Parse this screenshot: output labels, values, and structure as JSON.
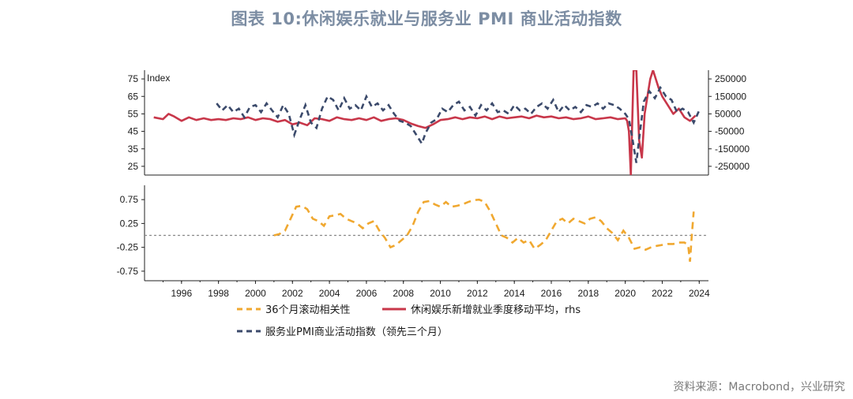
{
  "title": "图表 10:休闲娱乐就业与服务业 PMI 商业活动指数",
  "source": "资料来源：Macrobond，兴业研究",
  "colors": {
    "pmi": "#3b4a6b",
    "employment": "#c8374a",
    "correlation": "#f0a830",
    "zero_line": "#888888",
    "title": "#7c8da3"
  },
  "chart_data": [
    {
      "type": "line",
      "panel": "top",
      "axis_label_left": "Index",
      "left_ticks": [
        "75",
        "65",
        "55",
        "45",
        "35",
        "25"
      ],
      "left_ylim": [
        20,
        80
      ],
      "right_ticks": [
        "250000",
        "150000",
        "50000",
        "-50000",
        "-150000",
        "-250000"
      ],
      "right_ylim": [
        -300000,
        300000
      ],
      "xlim": [
        1994,
        2024.5
      ],
      "series": [
        {
          "name": "服务业PMI商业活动指数（领先三个月）",
          "axis": "left",
          "style": "dashed",
          "x": [
            1997.9,
            1998.2,
            1998.5,
            1998.8,
            1999.1,
            1999.4,
            1999.7,
            2000.0,
            2000.3,
            2000.6,
            2000.9,
            2001.2,
            2001.5,
            2001.8,
            2002.1,
            2002.4,
            2002.7,
            2003.0,
            2003.3,
            2003.6,
            2003.9,
            2004.2,
            2004.5,
            2004.8,
            2005.1,
            2005.4,
            2005.7,
            2006.0,
            2006.3,
            2006.6,
            2006.9,
            2007.2,
            2007.5,
            2007.8,
            2008.1,
            2008.4,
            2008.7,
            2009.0,
            2009.2,
            2009.5,
            2009.8,
            2010.1,
            2010.4,
            2010.7,
            2011.0,
            2011.3,
            2011.6,
            2011.9,
            2012.2,
            2012.5,
            2012.8,
            2013.1,
            2013.4,
            2013.7,
            2014.0,
            2014.3,
            2014.6,
            2014.9,
            2015.2,
            2015.5,
            2015.8,
            2016.1,
            2016.4,
            2016.7,
            2017.0,
            2017.3,
            2017.6,
            2017.9,
            2018.2,
            2018.5,
            2018.8,
            2019.1,
            2019.4,
            2019.7,
            2020.0,
            2020.2,
            2020.4,
            2020.6,
            2020.8,
            2021.0,
            2021.3,
            2021.6,
            2021.9,
            2022.2,
            2022.5,
            2022.8,
            2023.1,
            2023.4,
            2023.7,
            2024.0
          ],
          "values": [
            61,
            57,
            60,
            56,
            58,
            53,
            59,
            60,
            56,
            61,
            57,
            53,
            60,
            55,
            43,
            52,
            60,
            50,
            47,
            58,
            65,
            63,
            57,
            64,
            58,
            60,
            57,
            65,
            59,
            61,
            57,
            60,
            55,
            51,
            50,
            48,
            43,
            38,
            44,
            50,
            52,
            58,
            56,
            60,
            62,
            57,
            59,
            54,
            60,
            57,
            61,
            56,
            57,
            55,
            60,
            57,
            58,
            55,
            59,
            61,
            58,
            63,
            56,
            60,
            57,
            59,
            56,
            60,
            59,
            61,
            58,
            61,
            60,
            58,
            55,
            52,
            40,
            27,
            45,
            62,
            68,
            64,
            70,
            65,
            63,
            56,
            58,
            56,
            50,
            57
          ]
        },
        {
          "name": "休闲娱乐新增就业季度移动平均，rhs",
          "axis": "right",
          "style": "solid",
          "x": [
            1994.5,
            1995.0,
            1995.3,
            1995.6,
            1996.0,
            1996.4,
            1996.8,
            1997.2,
            1997.6,
            1998.0,
            1998.4,
            1998.8,
            1999.2,
            1999.6,
            2000.0,
            2000.4,
            2000.8,
            2001.2,
            2001.6,
            2002.0,
            2002.4,
            2002.8,
            2003.2,
            2003.6,
            2004.0,
            2004.4,
            2004.8,
            2005.2,
            2005.6,
            2006.0,
            2006.4,
            2006.8,
            2007.2,
            2007.6,
            2008.0,
            2008.4,
            2008.8,
            2009.2,
            2009.6,
            2010.0,
            2010.4,
            2010.8,
            2011.2,
            2011.6,
            2012.0,
            2012.4,
            2012.8,
            2013.2,
            2013.6,
            2014.0,
            2014.4,
            2014.8,
            2015.2,
            2015.6,
            2016.0,
            2016.4,
            2016.8,
            2017.2,
            2017.6,
            2018.0,
            2018.4,
            2018.8,
            2019.2,
            2019.6,
            2020.0,
            2020.1,
            2020.2,
            2020.3,
            2020.45,
            2020.6,
            2020.75,
            2020.9,
            2021.05,
            2021.2,
            2021.35,
            2021.5,
            2021.65,
            2021.8,
            2022.0,
            2022.3,
            2022.6,
            2022.9,
            2023.2,
            2023.5,
            2023.8
          ],
          "values": [
            30000,
            20000,
            50000,
            35000,
            10000,
            30000,
            15000,
            25000,
            15000,
            20000,
            15000,
            25000,
            20000,
            30000,
            15000,
            25000,
            20000,
            5000,
            15000,
            -10000,
            0,
            -15000,
            25000,
            20000,
            10000,
            30000,
            20000,
            15000,
            25000,
            15000,
            30000,
            10000,
            20000,
            25000,
            15000,
            -5000,
            -20000,
            -30000,
            -10000,
            15000,
            20000,
            30000,
            20000,
            30000,
            25000,
            35000,
            20000,
            35000,
            25000,
            30000,
            35000,
            25000,
            40000,
            30000,
            35000,
            25000,
            30000,
            20000,
            25000,
            35000,
            20000,
            25000,
            30000,
            20000,
            25000,
            10000,
            -50000,
            -300000,
            300000,
            300000,
            -100000,
            -200000,
            50000,
            150000,
            250000,
            300000,
            250000,
            200000,
            150000,
            100000,
            50000,
            80000,
            30000,
            10000,
            40000
          ]
        }
      ]
    },
    {
      "type": "line",
      "panel": "bottom",
      "left_ticks": [
        "0.75",
        "0.25",
        "-0.25",
        "-0.75"
      ],
      "ylim": [
        -0.95,
        1.05
      ],
      "x_ticks": [
        "1996",
        "1998",
        "2000",
        "2002",
        "2004",
        "2006",
        "2008",
        "2010",
        "2012",
        "2014",
        "2016",
        "2018",
        "2020",
        "2022",
        "2024"
      ],
      "reference_line": 0,
      "series": [
        {
          "name": "36个月滚动相关性",
          "style": "dashed",
          "x": [
            2001.0,
            2001.3,
            2001.6,
            2001.9,
            2002.2,
            2002.5,
            2002.8,
            2003.1,
            2003.4,
            2003.7,
            2004.0,
            2004.3,
            2004.6,
            2004.9,
            2005.2,
            2005.5,
            2005.8,
            2006.1,
            2006.4,
            2006.7,
            2007.0,
            2007.3,
            2007.6,
            2007.9,
            2008.2,
            2008.5,
            2008.8,
            2009.1,
            2009.4,
            2009.7,
            2010.0,
            2010.3,
            2010.6,
            2010.9,
            2011.2,
            2011.5,
            2011.8,
            2012.1,
            2012.4,
            2012.7,
            2013.0,
            2013.3,
            2013.6,
            2013.9,
            2014.2,
            2014.5,
            2014.8,
            2015.1,
            2015.4,
            2015.7,
            2016.0,
            2016.3,
            2016.6,
            2016.9,
            2017.2,
            2017.5,
            2017.8,
            2018.1,
            2018.4,
            2018.7,
            2019.0,
            2019.3,
            2019.6,
            2019.9,
            2020.2,
            2020.5,
            2020.8,
            2021.1,
            2021.4,
            2021.7,
            2022.0,
            2022.3,
            2022.6,
            2022.9,
            2023.2,
            2023.4,
            2023.5,
            2023.6,
            2023.7
          ],
          "values": [
            0.0,
            0.03,
            0.1,
            0.35,
            0.6,
            0.62,
            0.55,
            0.35,
            0.3,
            0.2,
            0.4,
            0.42,
            0.45,
            0.35,
            0.3,
            0.25,
            0.15,
            0.25,
            0.3,
            0.1,
            -0.05,
            -0.25,
            -0.2,
            -0.1,
            0.0,
            0.2,
            0.5,
            0.7,
            0.72,
            0.65,
            0.6,
            0.7,
            0.6,
            0.62,
            0.65,
            0.7,
            0.74,
            0.75,
            0.7,
            0.5,
            0.25,
            0.0,
            -0.05,
            -0.15,
            -0.05,
            -0.15,
            -0.1,
            -0.28,
            -0.2,
            -0.1,
            0.1,
            0.3,
            0.35,
            0.25,
            0.35,
            0.3,
            0.25,
            0.35,
            0.38,
            0.3,
            0.15,
            0.05,
            -0.1,
            0.1,
            -0.05,
            -0.28,
            -0.25,
            -0.3,
            -0.25,
            -0.22,
            -0.2,
            -0.18,
            -0.18,
            -0.15,
            -0.15,
            -0.2,
            -0.55,
            0.0,
            0.5
          ]
        }
      ]
    }
  ],
  "legend": {
    "correlation": "36个月滚动相关性",
    "employment": "休闲娱乐新增就业季度移动平均，rhs",
    "pmi": "服务业PMI商业活动指数（领先三个月）"
  }
}
